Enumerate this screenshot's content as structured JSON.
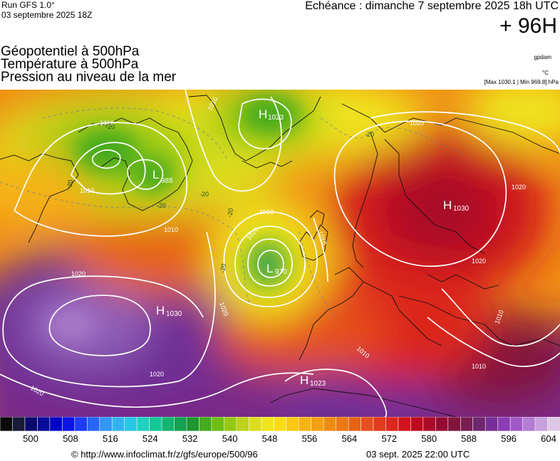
{
  "header": {
    "run": "Run GFS 1.0°",
    "run_date": "03 septembre 2025 18Z",
    "valid": "Echéance : dimanche 7 septembre 2025 18h UTC",
    "lead": "+ 96H"
  },
  "titles": [
    "Géopotentiel à 500hPa",
    "Température à 500hPa",
    "Pression au niveau de la mer"
  ],
  "units": {
    "geopotential": "gpdam",
    "temperature": "°C",
    "minmax": "[Max 1030.1 | Min 969.8] hPa"
  },
  "centers": [
    {
      "type": "H",
      "value": "1023"
    },
    {
      "type": "L",
      "value": "988"
    },
    {
      "type": "H",
      "value": "1030"
    },
    {
      "type": "L",
      "value": "970"
    },
    {
      "type": "H",
      "value": "1030"
    },
    {
      "type": "H",
      "value": "1023"
    }
  ],
  "isobar_labels": [
    "1010",
    "1010",
    "1010",
    "1010",
    "1020",
    "1020",
    "1020",
    "1020",
    "1020",
    "1020",
    "1010",
    "1010",
    "1010",
    "1020",
    "1020",
    "1010",
    "1010"
  ],
  "temp_labels": [
    "-20",
    "-20",
    "-20",
    "-20",
    "-20",
    "-20",
    "-20"
  ],
  "colorbar": {
    "colors": [
      "#0a0a0a",
      "#1a1a3a",
      "#0a0a6e",
      "#0a0a9a",
      "#0000c8",
      "#0a14e6",
      "#1e3cf5",
      "#2864f5",
      "#3296f5",
      "#32b4f0",
      "#28c8e6",
      "#1ed2be",
      "#14c896",
      "#14b46e",
      "#14a050",
      "#1e9632",
      "#46aa1e",
      "#6ebe14",
      "#96c814",
      "#bed21e",
      "#dcdc1e",
      "#f0e61e",
      "#fadc14",
      "#fac814",
      "#f5b414",
      "#f5a014",
      "#f08c14",
      "#eb7814",
      "#e66414",
      "#e6501e",
      "#e13c1e",
      "#dc281e",
      "#d2141e",
      "#be0a1e",
      "#aa0a28",
      "#960a32",
      "#82143c",
      "#781e50",
      "#6e286e",
      "#782d96",
      "#8c3cb4",
      "#a05ac8",
      "#b47ed2",
      "#c8a0dc",
      "#dcc8e6"
    ],
    "tick_values": [
      "500",
      "508",
      "516",
      "524",
      "532",
      "540",
      "548",
      "556",
      "564",
      "572",
      "580",
      "588",
      "596",
      "604"
    ]
  },
  "footer": {
    "url": "© http://www.infoclimat.fr/z/gfs/europe/500/96",
    "time": "03 sept. 2025 22:00 UTC"
  }
}
